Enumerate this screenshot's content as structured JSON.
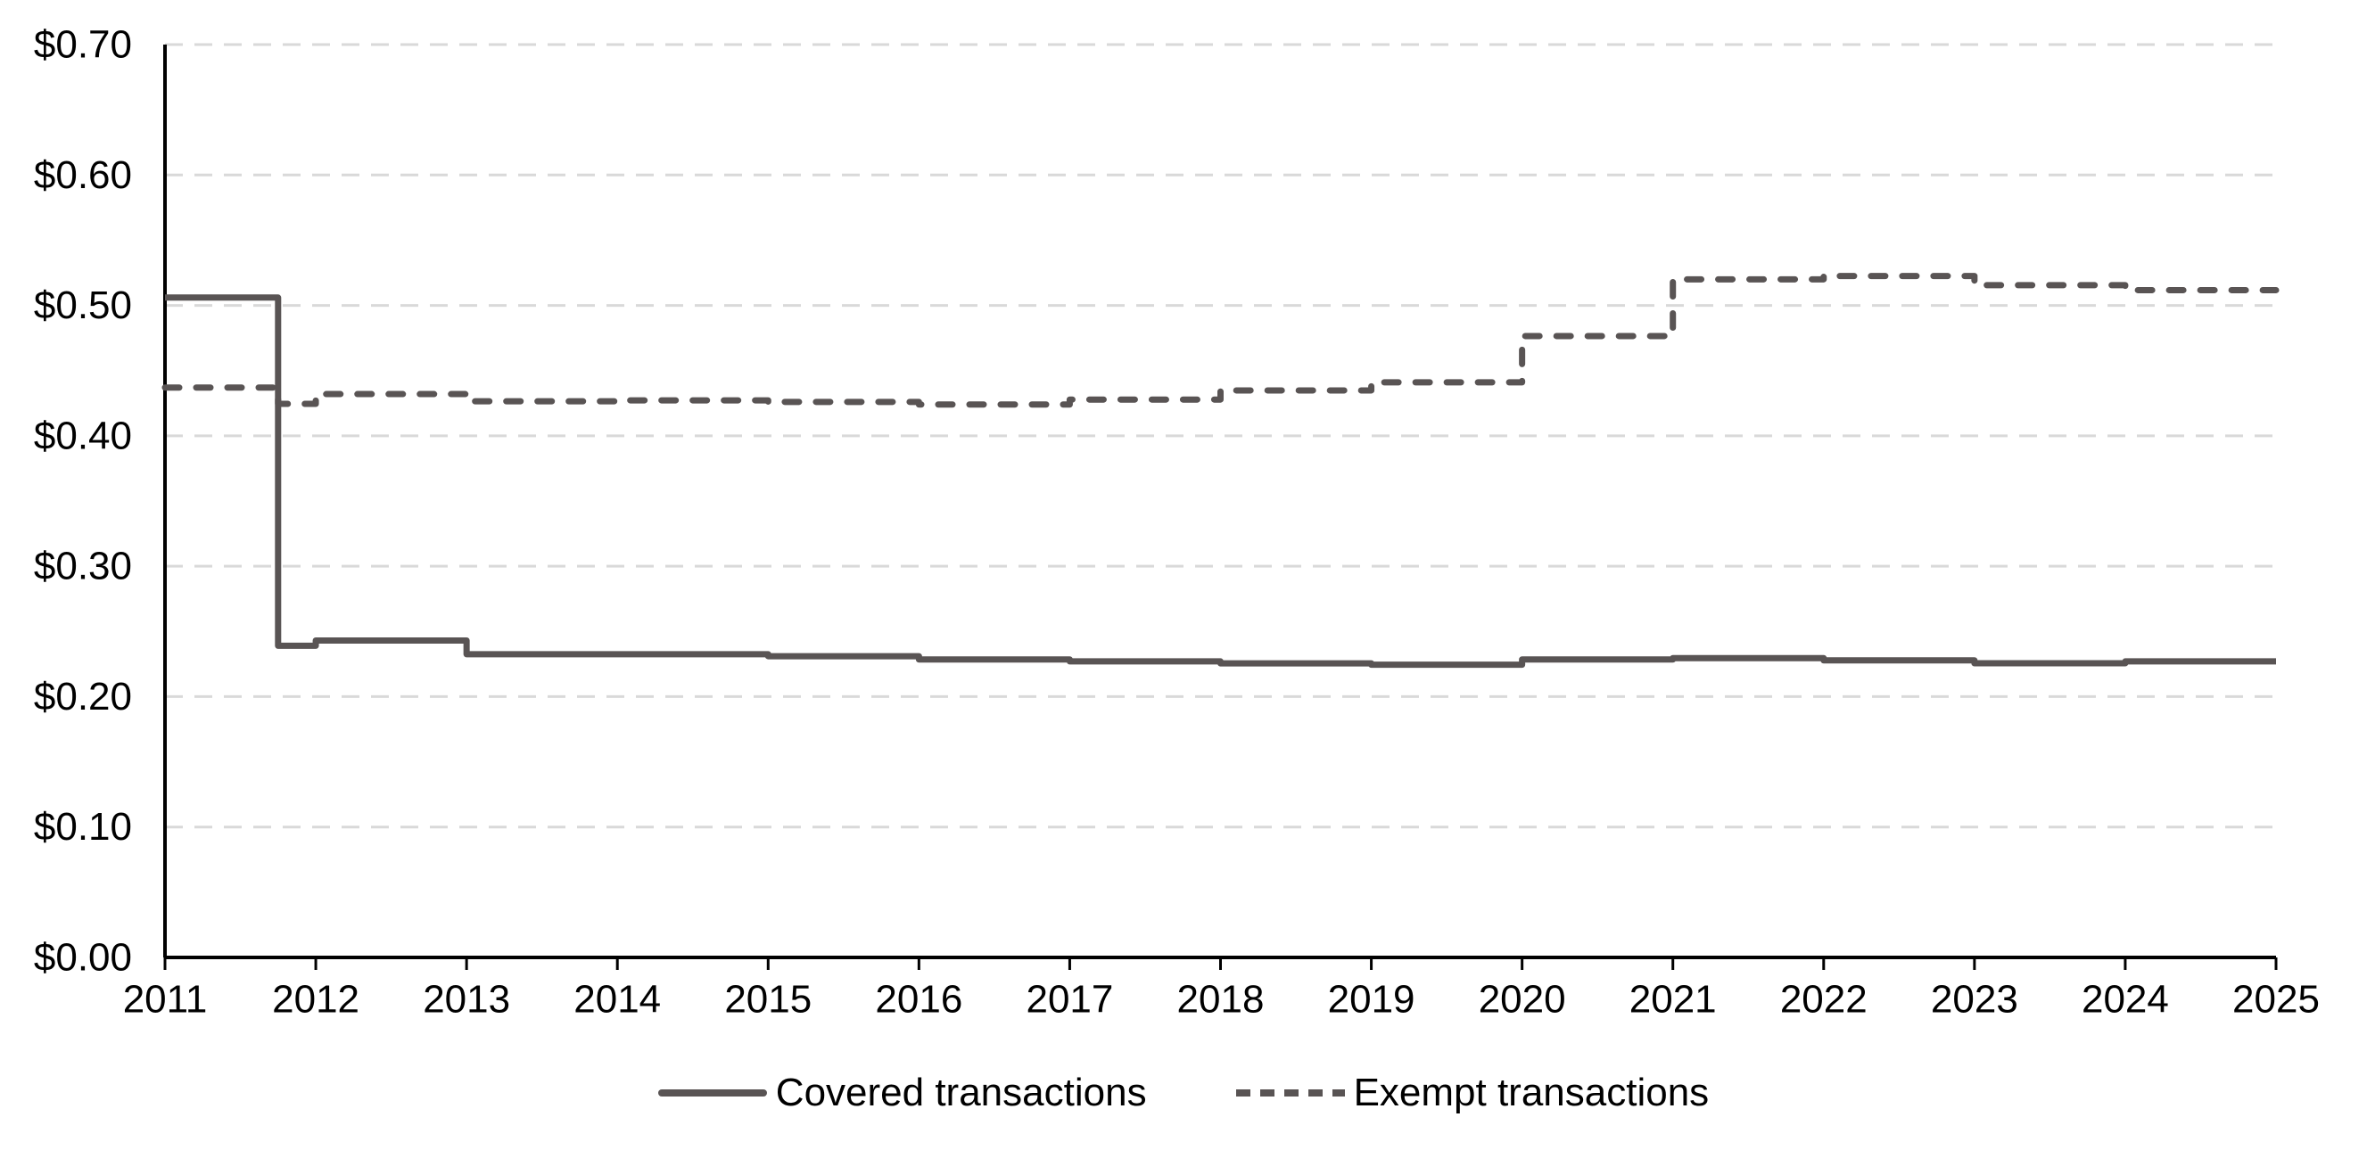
{
  "chart_data": {
    "type": "line",
    "subtype": "step",
    "title": "",
    "x_axis": {
      "min": 2011,
      "max": 2025,
      "ticks": [
        2011,
        2012,
        2013,
        2014,
        2015,
        2016,
        2017,
        2018,
        2019,
        2020,
        2021,
        2022,
        2023,
        2024,
        2025
      ]
    },
    "y_axis": {
      "min": 0.0,
      "max": 0.7,
      "tick_values": [
        0.0,
        0.1,
        0.2,
        0.3,
        0.4,
        0.5,
        0.6,
        0.7
      ],
      "tick_labels": [
        "$0.00",
        "$0.10",
        "$0.20",
        "$0.30",
        "$0.40",
        "$0.50",
        "$0.60",
        "$0.70"
      ]
    },
    "grid": "horizontal dashed lines at each y tick",
    "legend_position": "bottom-center",
    "colors": {
      "series": "#595454",
      "gridline": "#d9d9d9",
      "axis": "#000000",
      "background": "#ffffff",
      "text": "#000000"
    },
    "series": [
      {
        "name": "Covered transactions",
        "style": "solid",
        "color": "#595454",
        "x_end": 2025,
        "points": [
          {
            "x": 2011.0,
            "y": 0.506
          },
          {
            "x": 2011.75,
            "y": 0.239
          },
          {
            "x": 2012.0,
            "y": 0.243
          },
          {
            "x": 2013.0,
            "y": 0.2325
          },
          {
            "x": 2014.0,
            "y": 0.2325
          },
          {
            "x": 2015.0,
            "y": 0.231
          },
          {
            "x": 2016.0,
            "y": 0.2285
          },
          {
            "x": 2017.0,
            "y": 0.227
          },
          {
            "x": 2018.0,
            "y": 0.2255
          },
          {
            "x": 2019.0,
            "y": 0.2245
          },
          {
            "x": 2020.0,
            "y": 0.2285
          },
          {
            "x": 2021.0,
            "y": 0.2295
          },
          {
            "x": 2022.0,
            "y": 0.2278
          },
          {
            "x": 2023.0,
            "y": 0.2256
          },
          {
            "x": 2024.0,
            "y": 0.227
          }
        ]
      },
      {
        "name": "Exempt transactions",
        "style": "dashed",
        "color": "#595454",
        "x_end": 2025,
        "points": [
          {
            "x": 2011.0,
            "y": 0.437
          },
          {
            "x": 2011.75,
            "y": 0.4245
          },
          {
            "x": 2012.0,
            "y": 0.432
          },
          {
            "x": 2013.0,
            "y": 0.4265
          },
          {
            "x": 2014.0,
            "y": 0.4272
          },
          {
            "x": 2015.0,
            "y": 0.426
          },
          {
            "x": 2016.0,
            "y": 0.424
          },
          {
            "x": 2017.0,
            "y": 0.4278
          },
          {
            "x": 2018.0,
            "y": 0.4348
          },
          {
            "x": 2019.0,
            "y": 0.441
          },
          {
            "x": 2020.0,
            "y": 0.4765
          },
          {
            "x": 2021.0,
            "y": 0.52
          },
          {
            "x": 2022.0,
            "y": 0.5225
          },
          {
            "x": 2023.0,
            "y": 0.5155
          },
          {
            "x": 2024.0,
            "y": 0.5117
          }
        ]
      }
    ]
  },
  "legend": {
    "covered_label": "Covered transactions",
    "exempt_label": "Exempt transactions"
  }
}
